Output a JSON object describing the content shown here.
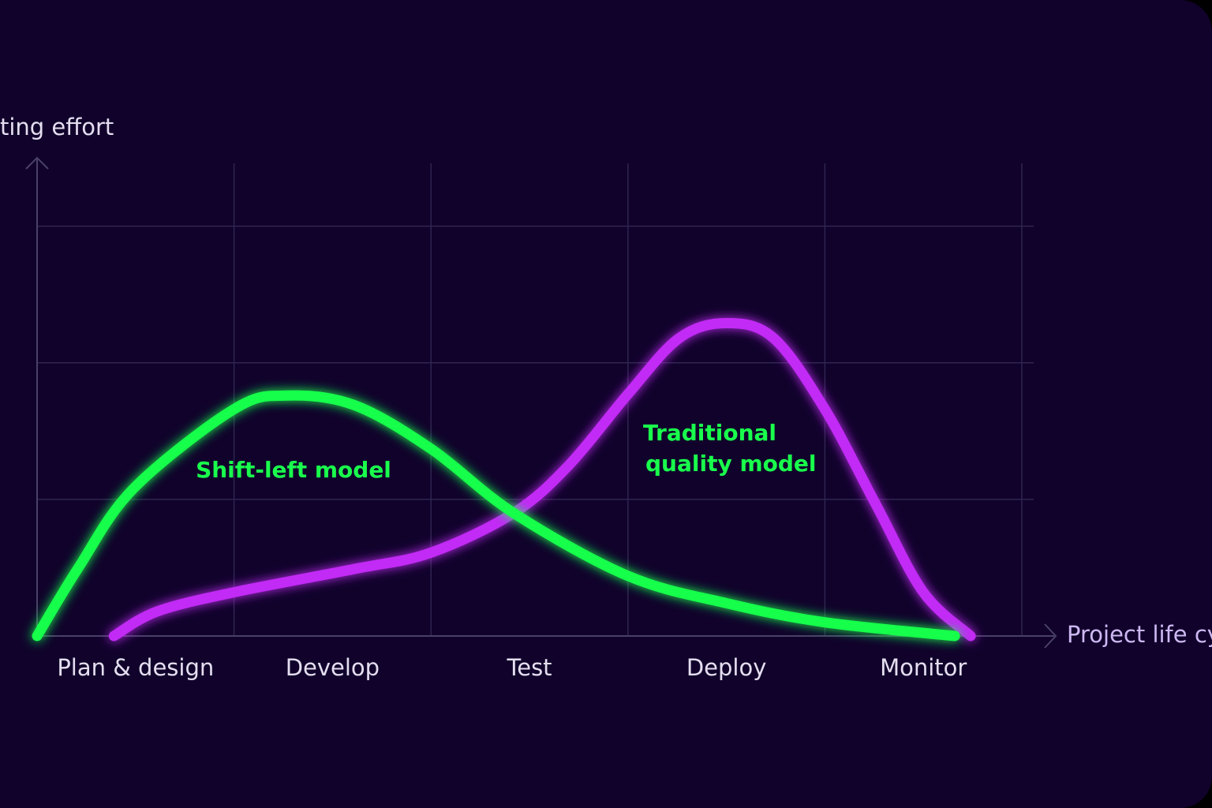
{
  "chart_data": {
    "type": "line",
    "y_label": "ting effort",
    "x_label": "Project life cy",
    "categories": [
      "Plan & design",
      "Develop",
      "Test",
      "Deploy",
      "Monitor"
    ],
    "xlim": [
      0,
      5
    ],
    "xticks": [
      0,
      1,
      2,
      3,
      4,
      5
    ],
    "ylim": [
      0,
      3.5
    ],
    "yticks": [
      0,
      1,
      2,
      3
    ],
    "grid": true,
    "series": [
      {
        "name": "Shift-left model",
        "color": "#19ff4c",
        "x": [
          0,
          0.21,
          0.49,
          1.0,
          1.27,
          1.61,
          2.0,
          2.42,
          3.0,
          3.5,
          4.0,
          4.66
        ],
        "values": [
          0,
          0.5,
          1.08,
          1.66,
          1.76,
          1.69,
          1.37,
          0.9,
          0.44,
          0.24,
          0.1,
          0
        ]
      },
      {
        "name": "Traditional quality model",
        "color": "#c22cf5",
        "x": [
          0.39,
          0.61,
          1.0,
          1.61,
          2.0,
          2.42,
          2.7,
          3.0,
          3.26,
          3.5,
          3.74,
          4.0,
          4.26,
          4.5,
          4.74
        ],
        "values": [
          0,
          0.18,
          0.32,
          0.49,
          0.61,
          0.9,
          1.25,
          1.77,
          2.18,
          2.29,
          2.18,
          1.66,
          0.96,
          0.32,
          0
        ]
      }
    ],
    "annotations": [
      "Shift-left model",
      "Traditional",
      "quality model"
    ],
    "annotation_color": "#19ff4c"
  }
}
